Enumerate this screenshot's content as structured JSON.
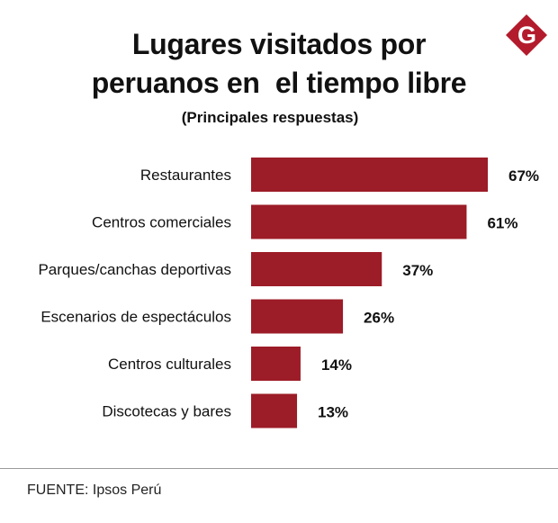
{
  "brand": {
    "letter": "G",
    "color": "#b31b2c"
  },
  "chart_data": {
    "type": "bar",
    "orientation": "horizontal",
    "title": "Lugares visitados por\nperuanos en  el tiempo libre",
    "subtitle": "(Principales respuestas)",
    "categories": [
      "Restaurantes",
      "Centros comerciales",
      "Parques/canchas deportivas",
      "Escenarios de espectáculos",
      "Centros culturales",
      "Discotecas y bares"
    ],
    "values": [
      67,
      61,
      37,
      26,
      14,
      13
    ],
    "value_labels": [
      "67%",
      "61%",
      "37%",
      "26%",
      "14%",
      "13%"
    ],
    "unit": "%",
    "bar_color": "#9c1c27",
    "xlim": [
      0,
      67
    ],
    "grid": false
  },
  "source": "FUENTE: Ipsos Perú"
}
